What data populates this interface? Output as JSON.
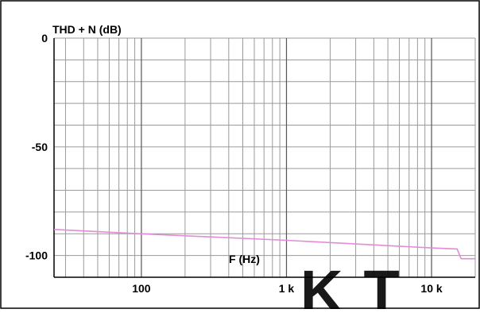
{
  "chart_data": {
    "type": "line",
    "title": "",
    "ylabel": "THD + N (dB)",
    "xlabel": "F (Hz)",
    "x_scale": "log",
    "xlim": [
      25,
      20000
    ],
    "ylim": [
      -110,
      0
    ],
    "x_ticks": [
      {
        "value": 100,
        "label": "100"
      },
      {
        "value": 1000,
        "label": "1 k"
      },
      {
        "value": 10000,
        "label": "10  k"
      }
    ],
    "y_ticks": [
      {
        "value": 0,
        "label": "0"
      },
      {
        "value": -50,
        "label": "-50"
      },
      {
        "value": -100,
        "label": "-100"
      }
    ],
    "y_minor_step": 10,
    "grid": true,
    "line_color": "#e38bd8",
    "series": [
      {
        "x": [
          25,
          100,
          1000,
          10000,
          15000,
          16000,
          20000
        ],
        "y": [
          -88,
          -90,
          -93,
          -96.5,
          -97,
          -101.5,
          -101.5
        ]
      }
    ]
  },
  "watermark": {
    "text": "KT",
    "color": "#f04a3a"
  }
}
